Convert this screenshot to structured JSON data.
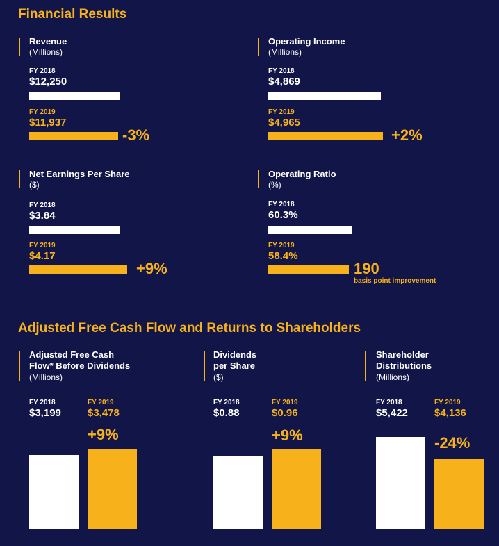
{
  "financial": {
    "title": "Financial Results",
    "panels": [
      {
        "name": "Revenue",
        "unit": "(Millions)",
        "fy2018_label": "FY 2018",
        "fy2018_value": "$12,250",
        "fy2019_label": "FY 2019",
        "fy2019_value": "$11,937",
        "change": "-3%"
      },
      {
        "name": "Operating Income",
        "unit": "(Millions)",
        "fy2018_label": "FY 2018",
        "fy2018_value": "$4,869",
        "fy2019_label": "FY 2019",
        "fy2019_value": "$4,965",
        "change": "+2%"
      },
      {
        "name": "Net Earnings Per Share",
        "unit": "($)",
        "fy2018_label": "FY 2018",
        "fy2018_value": "$3.84",
        "fy2019_label": "FY 2019",
        "fy2019_value": "$4.17",
        "change": "+9%"
      },
      {
        "name": "Operating Ratio",
        "unit": "(%)",
        "fy2018_label": "FY 2018",
        "fy2018_value": "60.3%",
        "fy2019_label": "FY 2019",
        "fy2019_value": "58.4%",
        "change": "190",
        "change_note": "basis point improvement"
      }
    ]
  },
  "cashflow": {
    "title": "Adjusted Free Cash Flow and Returns to Shareholders",
    "panels": [
      {
        "name_line1": "Adjusted Free Cash",
        "name_line2": "Flow* Before Dividends",
        "unit": "(Millions)",
        "fy2018_label": "FY 2018",
        "fy2018_value": "$3,199",
        "fy2019_label": "FY 2019",
        "fy2019_value": "$3,478",
        "change": "+9%"
      },
      {
        "name_line1": "Dividends",
        "name_line2": "per Share",
        "unit": "($)",
        "fy2018_label": "FY 2018",
        "fy2018_value": "$0.88",
        "fy2019_label": "FY 2019",
        "fy2019_value": "$0.96",
        "change": "+9%"
      },
      {
        "name_line1": "Shareholder",
        "name_line2": "Distributions",
        "unit": "(Millions)",
        "fy2018_label": "FY 2018",
        "fy2018_value": "$5,422",
        "fy2019_label": "FY 2019",
        "fy2019_value": "$4,136",
        "change": "-24%"
      }
    ]
  },
  "colors": {
    "background": "#121547",
    "accent": "#f7b21b",
    "bar_2018": "#ffffff",
    "bar_2019": "#f7b21b"
  },
  "chart_data": [
    {
      "type": "bar",
      "orientation": "horizontal",
      "title": "Revenue",
      "ylabel": "(Millions)",
      "categories": [
        "FY 2018",
        "FY 2019"
      ],
      "values": [
        12250,
        11937
      ]
    },
    {
      "type": "bar",
      "orientation": "horizontal",
      "title": "Operating Income",
      "ylabel": "(Millions)",
      "categories": [
        "FY 2018",
        "FY 2019"
      ],
      "values": [
        4869,
        4965
      ]
    },
    {
      "type": "bar",
      "orientation": "horizontal",
      "title": "Net Earnings Per Share",
      "ylabel": "($)",
      "categories": [
        "FY 2018",
        "FY 2019"
      ],
      "values": [
        3.84,
        4.17
      ]
    },
    {
      "type": "bar",
      "orientation": "horizontal",
      "title": "Operating Ratio",
      "ylabel": "(%)",
      "categories": [
        "FY 2018",
        "FY 2019"
      ],
      "values": [
        60.3,
        58.4
      ]
    },
    {
      "type": "bar",
      "orientation": "vertical",
      "title": "Adjusted Free Cash Flow* Before Dividends",
      "ylabel": "(Millions)",
      "categories": [
        "FY 2018",
        "FY 2019"
      ],
      "values": [
        3199,
        3478
      ]
    },
    {
      "type": "bar",
      "orientation": "vertical",
      "title": "Dividends per Share",
      "ylabel": "($)",
      "categories": [
        "FY 2018",
        "FY 2019"
      ],
      "values": [
        0.88,
        0.96
      ]
    },
    {
      "type": "bar",
      "orientation": "vertical",
      "title": "Shareholder Distributions",
      "ylabel": "(Millions)",
      "categories": [
        "FY 2018",
        "FY 2019"
      ],
      "values": [
        5422,
        4136
      ]
    }
  ]
}
